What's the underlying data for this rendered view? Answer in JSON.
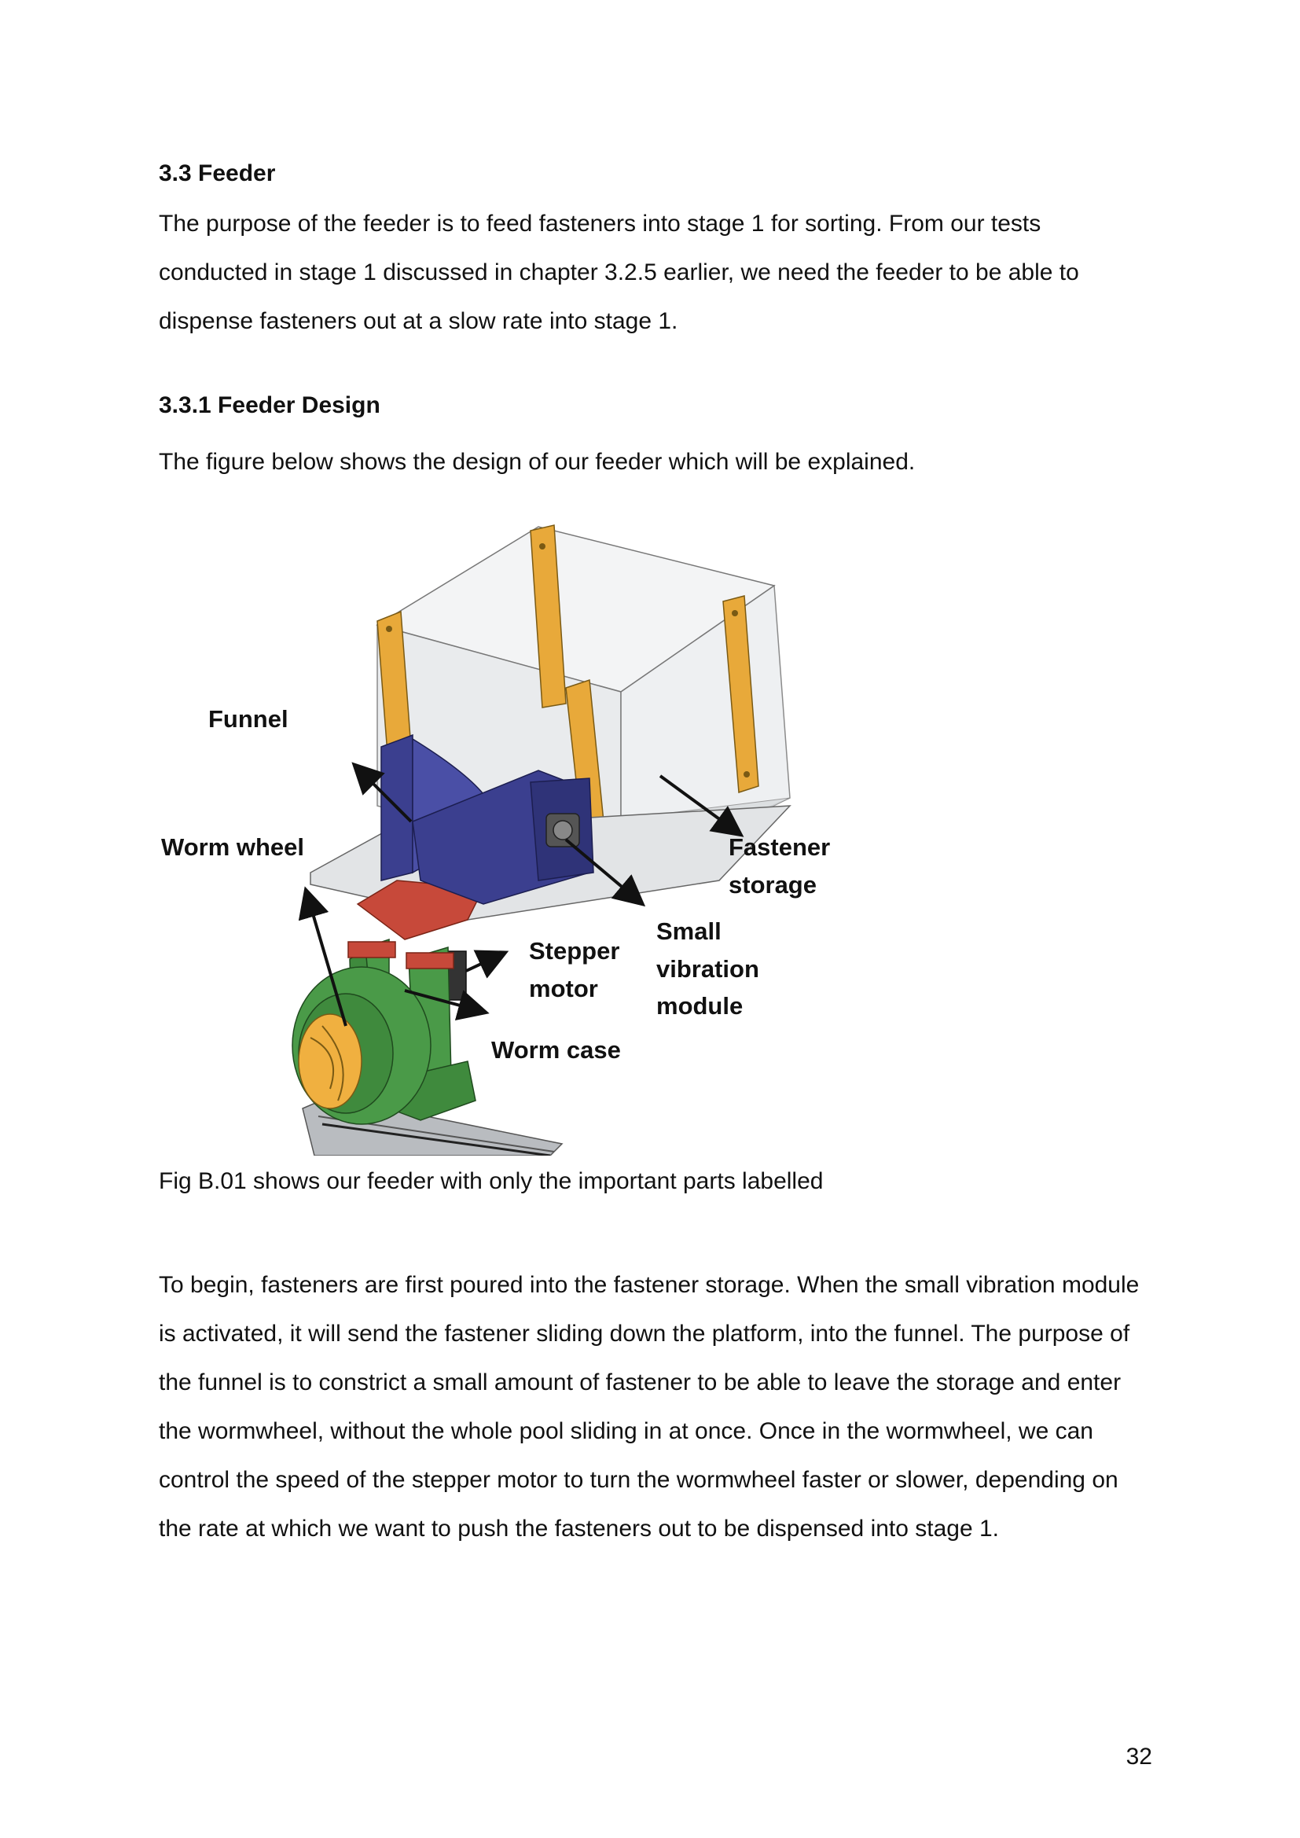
{
  "section": {
    "heading": "3.3 Feeder",
    "intro": "The purpose of the feeder is to feed fasteners into stage 1 for sorting. From our tests conducted in stage 1 discussed in chapter 3.2.5 earlier, we need the feeder to be able to dispense fasteners out at a slow rate into stage 1."
  },
  "subsection": {
    "heading": "3.3.1 Feeder Design",
    "intro": "The figure below shows the design of our feeder which will be explained."
  },
  "figure": {
    "labels": {
      "funnel": "Funnel",
      "worm_wheel": "Worm wheel",
      "fastener_storage_1": "Fastener",
      "fastener_storage_2": "storage",
      "small_vibration_1": "Small",
      "small_vibration_2": "vibration",
      "small_vibration_3": "module",
      "stepper_1": "Stepper",
      "stepper_2": "motor",
      "worm_case": "Worm case"
    },
    "caption": "Fig B.01 shows our feeder with only the important parts labelled"
  },
  "body": {
    "paragraph": "To begin, fasteners are first poured into the fastener storage. When the small vibration module is activated, it will send the fastener sliding down the platform, into the funnel. The purpose of the funnel is to constrict a small amount of fastener to be able to leave the storage and enter the wormwheel, without the whole pool sliding in at once. Once in the wormwheel, we can control the speed of the stepper motor to turn the wormwheel faster or slower, depending on the rate at which we want to push the fasteners out to be dispensed into stage 1."
  },
  "page_number": "32",
  "colors": {
    "funnel": "#3b3f8f",
    "pillar": "#e8a93a",
    "worm_case": "#4a9a48",
    "worm_wheel": "#f0b040",
    "red_bar": "#c7493a",
    "glass": "#e6e8ea"
  }
}
